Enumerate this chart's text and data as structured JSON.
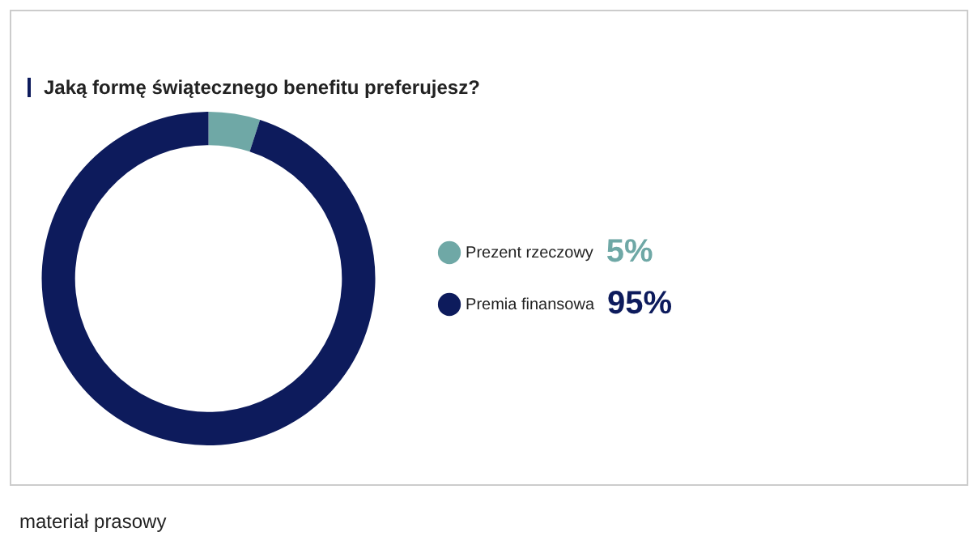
{
  "chart_data": {
    "type": "donut",
    "title": "Jaką formę świątecznego benefitu preferujesz?",
    "categories": [
      "Prezent rzeczowy",
      "Premia finansowa"
    ],
    "values": [
      5,
      95
    ],
    "colors": [
      "#6fa8a6",
      "#0d1b5c"
    ],
    "value_labels": [
      "5%",
      "95%"
    ],
    "data_labels": false,
    "legend": "right",
    "annotations": [
      "materiał prasowy"
    ]
  }
}
